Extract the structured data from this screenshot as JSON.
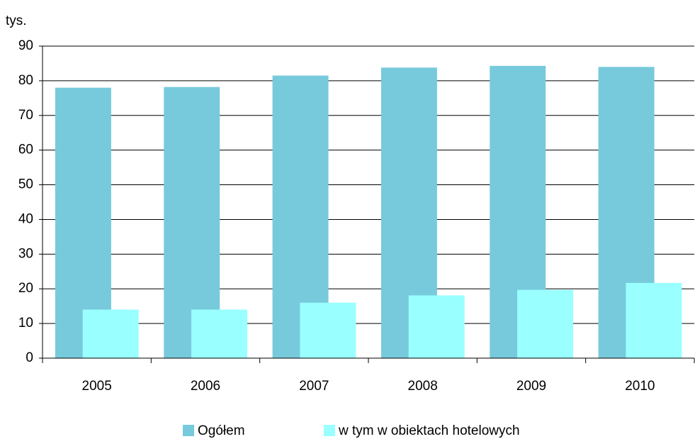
{
  "chart_data": {
    "type": "bar",
    "y_label": "tys.",
    "categories": [
      "2005",
      "2006",
      "2007",
      "2008",
      "2009",
      "2010"
    ],
    "series": [
      {
        "name": "Ogółem",
        "color": "#77cadb",
        "values": [
          78,
          78.2,
          81.5,
          83.8,
          84.3,
          84
        ]
      },
      {
        "name": "w tym w obiektach hotelowych",
        "color": "#99ffff",
        "values": [
          14,
          14,
          16,
          18.1,
          19.7,
          21.7
        ]
      }
    ],
    "ylim": [
      0,
      90
    ],
    "yticks": [
      0,
      10,
      20,
      30,
      40,
      50,
      60,
      70,
      80,
      90
    ],
    "grid": true,
    "legend": "bottom"
  }
}
